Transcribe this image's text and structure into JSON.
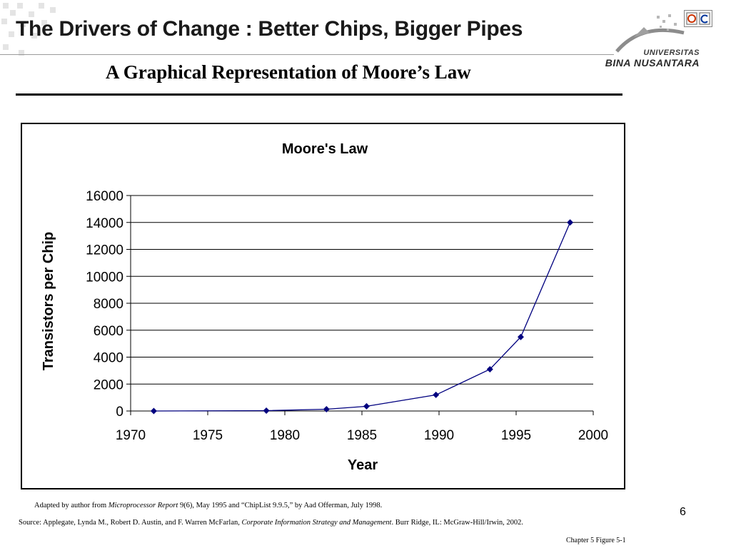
{
  "slide": {
    "title": "The Drivers of Change : Better Chips, Bigger Pipes",
    "subtitle": "A Graphical Representation of Moore’s Law",
    "page_number": "6",
    "chapter_label": "Chapter 5 Figure 5-1"
  },
  "logo": {
    "line1": "UNIVERSITAS",
    "line2": "BINA NUSANTARA"
  },
  "source_note": {
    "prefix": "Adapted by author from ",
    "publication": "Microprocessor Report",
    "suffix": " 9(6), May 1995 and “ChipList 9.9.5,” by Aad Offerman, July 1998."
  },
  "source": {
    "prefix": "Source:  Applegate, Lynda M., Robert D. Austin, and F. Warren McFarlan, ",
    "book": "Corporate Information Strategy and Management",
    "suffix": ". Burr Ridge, IL: McGraw-Hill/Irwin, 2002."
  },
  "chart_data": {
    "type": "line",
    "title": "Moore's Law",
    "xlabel": "Year",
    "ylabel": "Transistors per Chip",
    "xlim": [
      1970,
      2000
    ],
    "ylim": [
      0,
      16000
    ],
    "xticks": [
      1970,
      1975,
      1980,
      1985,
      1990,
      1995,
      2000
    ],
    "yticks": [
      0,
      2000,
      4000,
      6000,
      8000,
      10000,
      12000,
      14000,
      16000
    ],
    "grid": "horizontal",
    "series": [
      {
        "color": "#00007f",
        "marker": "diamond",
        "x": [
          1971.5,
          1978.8,
          1982.7,
          1985.3,
          1989.8,
          1993.3,
          1995.3,
          1998.5
        ],
        "y": [
          2.3,
          29,
          134,
          350,
          1200,
          3100,
          5500,
          14000
        ]
      }
    ]
  }
}
